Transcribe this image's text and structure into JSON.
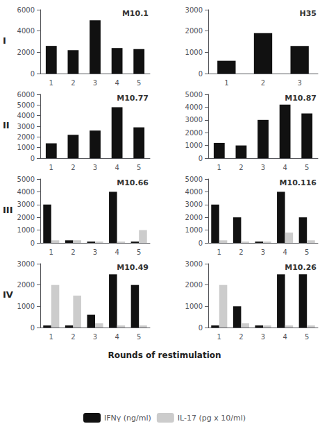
{
  "chart_data": [
    {
      "type": "bar",
      "title": "M10.1",
      "categories": [
        "1",
        "2",
        "3",
        "4",
        "5"
      ],
      "series": [
        {
          "name": "IFNγ (ng/ml)",
          "color": "#111111",
          "values": [
            2600,
            2200,
            5000,
            2400,
            2300
          ]
        }
      ],
      "ylim": [
        0,
        6000
      ],
      "yticks": [
        0,
        2000,
        4000,
        6000
      ],
      "grid": false
    },
    {
      "type": "bar",
      "title": "H35",
      "categories": [
        "1",
        "2",
        "3"
      ],
      "series": [
        {
          "name": "IFNγ (ng/ml)",
          "color": "#111111",
          "values": [
            600,
            1900,
            1300
          ]
        }
      ],
      "ylim": [
        0,
        3000
      ],
      "yticks": [
        0,
        1000,
        2000,
        3000
      ],
      "grid": false
    },
    {
      "type": "bar",
      "title": "M10.77",
      "categories": [
        "1",
        "2",
        "3",
        "4",
        "5"
      ],
      "series": [
        {
          "name": "IFNγ (ng/ml)",
          "color": "#111111",
          "values": [
            1400,
            2200,
            2600,
            4800,
            2900
          ]
        }
      ],
      "ylim": [
        0,
        6000
      ],
      "yticks": [
        0,
        1000,
        2000,
        3000,
        4000,
        5000,
        6000
      ],
      "grid": false
    },
    {
      "type": "bar",
      "title": "M10.87",
      "categories": [
        "1",
        "2",
        "3",
        "4",
        "5"
      ],
      "series": [
        {
          "name": "IFNγ (ng/ml)",
          "color": "#111111",
          "values": [
            1200,
            1000,
            3000,
            4200,
            3500
          ]
        }
      ],
      "ylim": [
        0,
        5000
      ],
      "yticks": [
        0,
        1000,
        2000,
        3000,
        4000,
        5000
      ],
      "grid": false
    },
    {
      "type": "bar",
      "title": "M10.66",
      "categories": [
        "1",
        "2",
        "3",
        "4",
        "5"
      ],
      "series": [
        {
          "name": "IFNγ (ng/ml)",
          "color": "#111111",
          "values": [
            3000,
            200,
            100,
            4000,
            100
          ]
        },
        {
          "name": "IL-17 (pg x 10/ml)",
          "color": "#cccccc",
          "values": [
            200,
            200,
            100,
            100,
            1000
          ]
        }
      ],
      "ylim": [
        0,
        5000
      ],
      "yticks": [
        0,
        1000,
        2000,
        3000,
        4000,
        5000
      ],
      "grid": false
    },
    {
      "type": "bar",
      "title": "M10.116",
      "categories": [
        "1",
        "2",
        "3",
        "4",
        "5"
      ],
      "series": [
        {
          "name": "IFNγ (ng/ml)",
          "color": "#111111",
          "values": [
            3000,
            2000,
            100,
            4000,
            2000
          ]
        },
        {
          "name": "IL-17 (pg x 10/ml)",
          "color": "#cccccc",
          "values": [
            200,
            100,
            100,
            800,
            200
          ]
        }
      ],
      "ylim": [
        0,
        5000
      ],
      "yticks": [
        0,
        1000,
        2000,
        3000,
        4000,
        5000
      ],
      "grid": false
    },
    {
      "type": "bar",
      "title": "M10.49",
      "categories": [
        "1",
        "2",
        "3",
        "4",
        "5"
      ],
      "series": [
        {
          "name": "IFNγ (ng/ml)",
          "color": "#111111",
          "values": [
            100,
            100,
            600,
            2500,
            2000
          ]
        },
        {
          "name": "IL-17 (pg x 10/ml)",
          "color": "#cccccc",
          "values": [
            2000,
            1500,
            200,
            100,
            100
          ]
        }
      ],
      "ylim": [
        0,
        3000
      ],
      "yticks": [
        0,
        1000,
        2000,
        3000
      ],
      "grid": false
    },
    {
      "type": "bar",
      "title": "M10.26",
      "categories": [
        "1",
        "2",
        "3",
        "4",
        "5"
      ],
      "series": [
        {
          "name": "IFNγ (ng/ml)",
          "color": "#111111",
          "values": [
            100,
            1000,
            100,
            2500,
            2500
          ]
        },
        {
          "name": "IL-17 (pg x 10/ml)",
          "color": "#cccccc",
          "values": [
            2000,
            200,
            100,
            100,
            100
          ]
        }
      ],
      "ylim": [
        0,
        3000
      ],
      "yticks": [
        0,
        1000,
        2000,
        3000
      ],
      "grid": false
    }
  ],
  "annotations": [
    "I",
    "II",
    "III",
    "IV"
  ],
  "xlabel": "Rounds of restimulation",
  "legend": "bottom"
}
